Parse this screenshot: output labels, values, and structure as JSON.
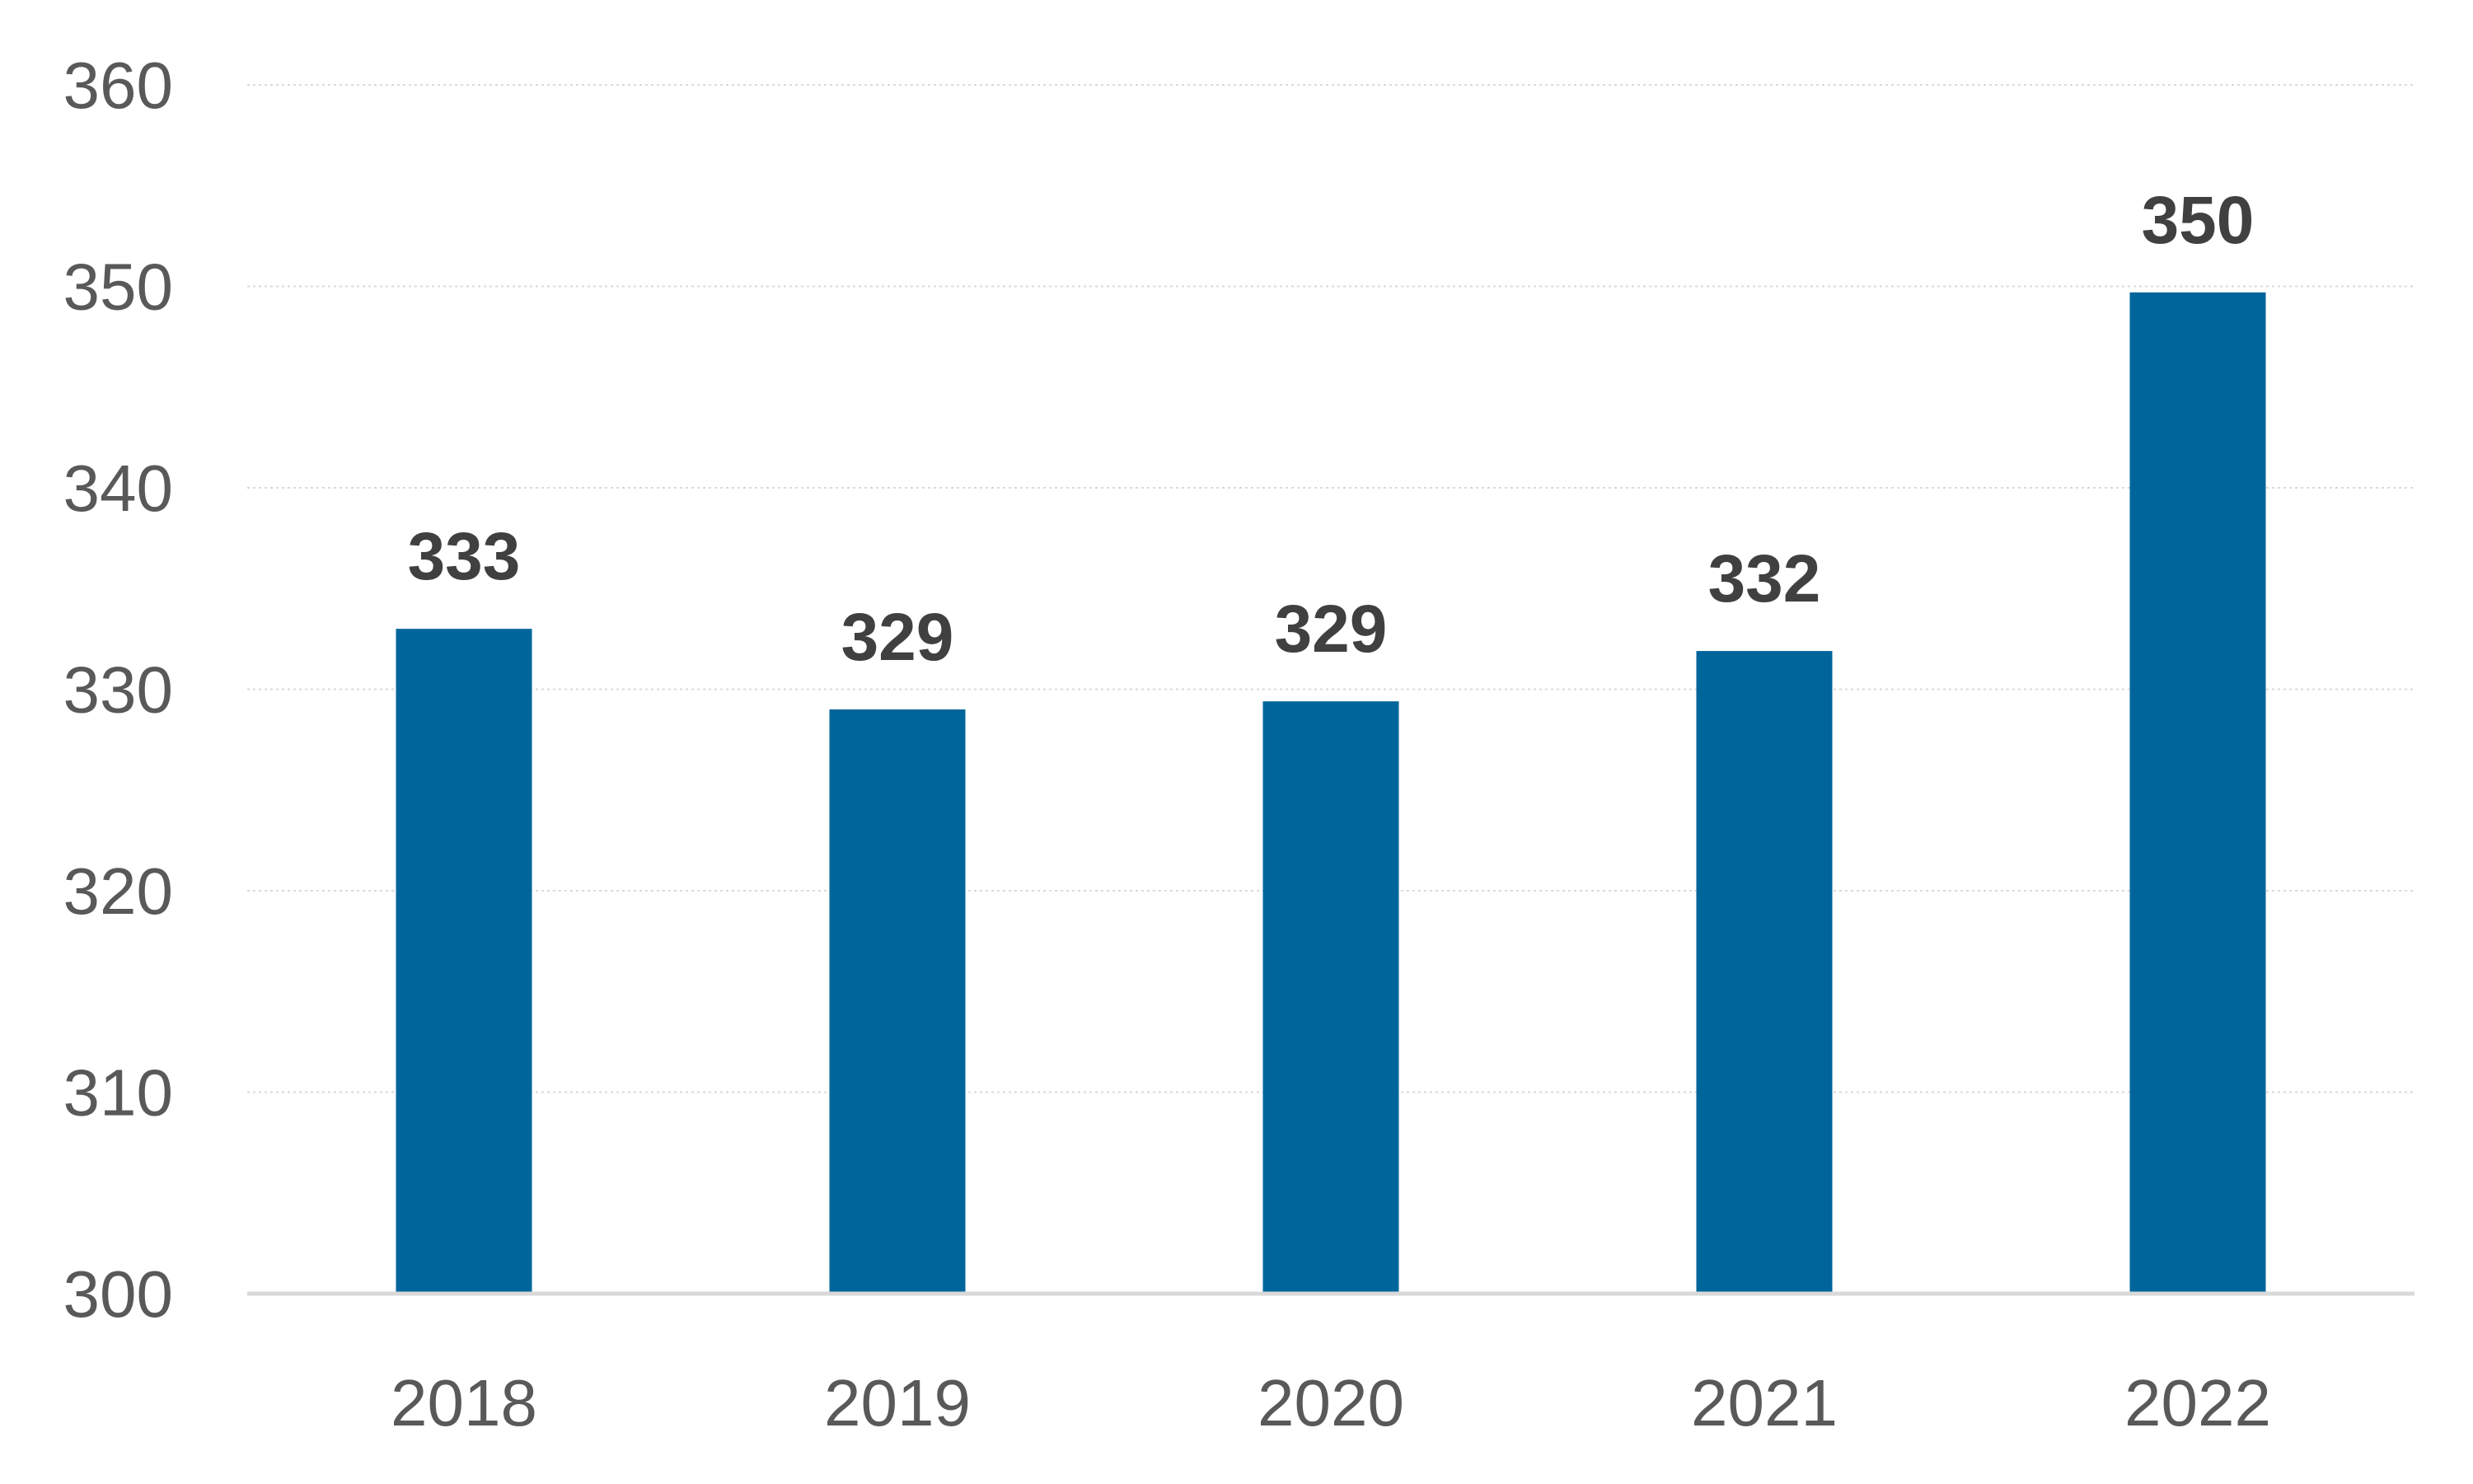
{
  "chart_data": {
    "type": "bar",
    "categories": [
      "2018",
      "2019",
      "2020",
      "2021",
      "2022"
    ],
    "values": [
      333,
      329,
      329.4,
      331.9,
      349.7
    ],
    "data_labels": [
      "333",
      "329",
      "329",
      "332",
      "350"
    ],
    "ylim": [
      300,
      360
    ],
    "yticks": [
      "300",
      "310",
      "320",
      "330",
      "340",
      "350",
      "360"
    ],
    "title": "",
    "xlabel": "",
    "ylabel": "",
    "grid": true,
    "colors": {
      "bar": "#00659b",
      "grid": "#d9d9d9",
      "tick_text": "#595959",
      "data_label_text": "#404040"
    }
  }
}
